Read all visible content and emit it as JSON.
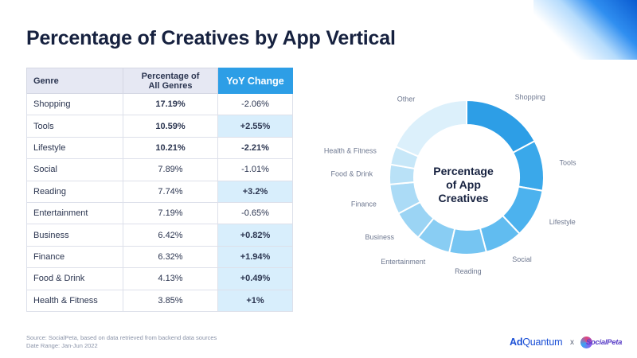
{
  "title": "Percentage of Creatives by App Vertical",
  "table": {
    "headers": {
      "genre": "Genre",
      "pct_line1": "Percentage of",
      "pct_line2": "All Genres",
      "yoy": "YoY Change"
    },
    "rows": [
      {
        "genre": "Shopping",
        "pct": "17.19%",
        "yoy": "-2.06%",
        "pct_bold": true,
        "yoy_positive": false,
        "yoy_bold": false
      },
      {
        "genre": "Tools",
        "pct": "10.59%",
        "yoy": "+2.55%",
        "pct_bold": true,
        "yoy_positive": true,
        "yoy_bold": true
      },
      {
        "genre": "Lifestyle",
        "pct": "10.21%",
        "yoy": "-2.21%",
        "pct_bold": true,
        "yoy_positive": false,
        "yoy_bold": true
      },
      {
        "genre": "Social",
        "pct": "7.89%",
        "yoy": "-1.01%",
        "pct_bold": false,
        "yoy_positive": false,
        "yoy_bold": false
      },
      {
        "genre": "Reading",
        "pct": "7.74%",
        "yoy": "+3.2%",
        "pct_bold": false,
        "yoy_positive": true,
        "yoy_bold": true
      },
      {
        "genre": "Entertainment",
        "pct": "7.19%",
        "yoy": "-0.65%",
        "pct_bold": false,
        "yoy_positive": false,
        "yoy_bold": false
      },
      {
        "genre": "Business",
        "pct": "6.42%",
        "yoy": "+0.82%",
        "pct_bold": false,
        "yoy_positive": true,
        "yoy_bold": true
      },
      {
        "genre": "Finance",
        "pct": "6.32%",
        "yoy": "+1.94%",
        "pct_bold": false,
        "yoy_positive": true,
        "yoy_bold": true
      },
      {
        "genre": "Food & Drink",
        "pct": "4.13%",
        "yoy": "+0.49%",
        "pct_bold": false,
        "yoy_positive": true,
        "yoy_bold": true
      },
      {
        "genre": "Health & Fitness",
        "pct": "3.85%",
        "yoy": "+1%",
        "pct_bold": false,
        "yoy_positive": true,
        "yoy_bold": true
      }
    ]
  },
  "chart_data": {
    "type": "pie",
    "center_label": [
      "Percentage",
      "of App",
      "Creatives"
    ],
    "categories": [
      "Shopping",
      "Tools",
      "Lifestyle",
      "Social",
      "Reading",
      "Entertainment",
      "Business",
      "Finance",
      "Food & Drink",
      "Health & Fitness",
      "Other"
    ],
    "values": [
      17.19,
      10.59,
      10.21,
      7.89,
      7.74,
      7.19,
      6.42,
      6.32,
      4.13,
      3.85,
      18.47
    ],
    "colors": [
      "#2d9ee6",
      "#3aa8ea",
      "#4cb2ee",
      "#61bcf0",
      "#76c5f2",
      "#89cdf3",
      "#9bd4f4",
      "#abdbf6",
      "#b9e1f7",
      "#c7e7f8",
      "#dcf0fb"
    ]
  },
  "source": {
    "line1": "Source: SocialPeta, based on data retrieved from backend data sources",
    "line2": "Date Range: Jan-Jun 2022"
  },
  "logos": {
    "adquantum_bold": "Ad",
    "adquantum_rest": "Quantum",
    "separator": "x",
    "socialpeta": "SocialPeta"
  }
}
